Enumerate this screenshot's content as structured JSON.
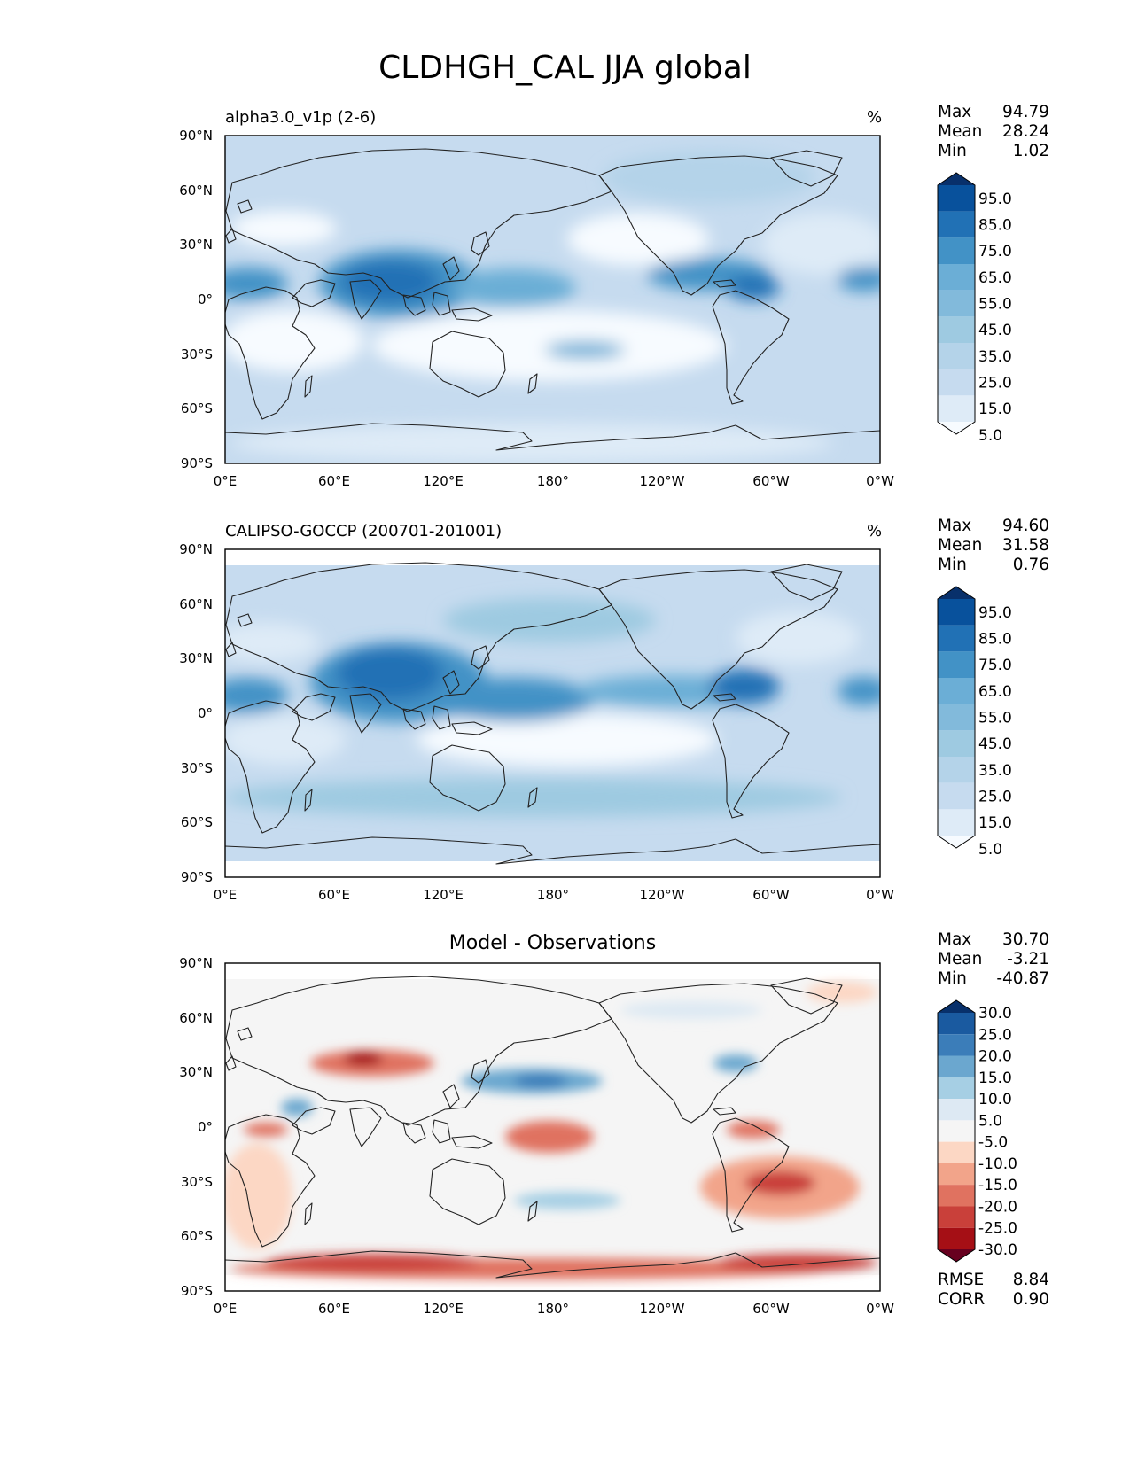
{
  "figure_title": "CLDHGH_CAL JJA global",
  "colors": {
    "blues": [
      "#f7fbff",
      "#deebf7",
      "#c6dbef",
      "#b4d3e9",
      "#9ecae1",
      "#82badb",
      "#6baed6",
      "#4292c6",
      "#2171b5",
      "#08519c",
      "#08306b"
    ],
    "diverging": [
      "#67001f",
      "#a50f15",
      "#c9403a",
      "#e07260",
      "#f2a48a",
      "#fcd7c4",
      "#f5f5f5",
      "#dde9f3",
      "#a6cfe4",
      "#6ba7cf",
      "#3b7db9",
      "#1a5aa0",
      "#08306b"
    ]
  },
  "axis": {
    "lat_ticks": [
      "90°N",
      "60°N",
      "30°N",
      "0°",
      "30°S",
      "60°S",
      "90°S"
    ],
    "lon_ticks": [
      "0°E",
      "60°E",
      "120°E",
      "180°",
      "120°W",
      "60°W",
      "0°W"
    ]
  },
  "panels": [
    {
      "id": "model",
      "title_left": "alpha3.0_v1p (2-6)",
      "title_center": "",
      "units": "%",
      "stats": [
        {
          "label": "Max",
          "value": "94.79"
        },
        {
          "label": "Mean",
          "value": "28.24"
        },
        {
          "label": "Min",
          "value": "1.02"
        }
      ],
      "colorbar_labels": [
        "95.0",
        "85.0",
        "75.0",
        "65.0",
        "55.0",
        "45.0",
        "35.0",
        "25.0",
        "15.0",
        "5.0"
      ]
    },
    {
      "id": "obs",
      "title_left": "CALIPSO-GOCCP (200701-201001)",
      "title_center": "",
      "units": "%",
      "stats": [
        {
          "label": "Max",
          "value": "94.60"
        },
        {
          "label": "Mean",
          "value": "31.58"
        },
        {
          "label": "Min",
          "value": "0.76"
        }
      ],
      "colorbar_labels": [
        "95.0",
        "85.0",
        "75.0",
        "65.0",
        "55.0",
        "45.0",
        "35.0",
        "25.0",
        "15.0",
        "5.0"
      ]
    },
    {
      "id": "diff",
      "title_left": "",
      "title_center": "Model - Observations",
      "units": "",
      "stats": [
        {
          "label": "Max",
          "value": "30.70"
        },
        {
          "label": "Mean",
          "value": "-3.21"
        },
        {
          "label": "Min",
          "value": "-40.87"
        }
      ],
      "colorbar_labels": [
        "30.0",
        "25.0",
        "20.0",
        "15.0",
        "10.0",
        "5.0",
        "-5.0",
        "-10.0",
        "-15.0",
        "-20.0",
        "-25.0",
        "-30.0"
      ],
      "extra_stats": [
        {
          "label": "RMSE",
          "value": "8.84"
        },
        {
          "label": "CORR",
          "value": "0.90"
        }
      ]
    }
  ]
}
